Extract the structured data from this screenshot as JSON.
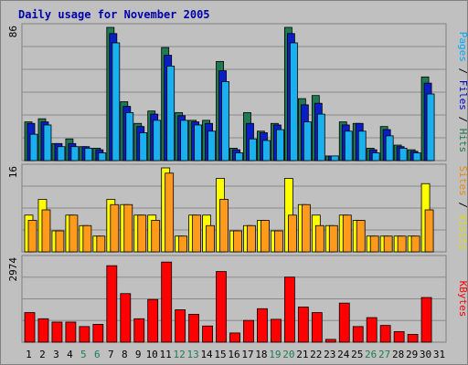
{
  "chart_data": {
    "type": "bar",
    "title": "Daily usage for November 2005",
    "categories": [
      "1",
      "2",
      "3",
      "4",
      "5",
      "6",
      "7",
      "8",
      "9",
      "10",
      "11",
      "12",
      "13",
      "14",
      "15",
      "16",
      "17",
      "18",
      "19",
      "20",
      "21",
      "22",
      "23",
      "24",
      "25",
      "26",
      "27",
      "28",
      "29",
      "30",
      "31"
    ],
    "weekend_categories": [
      "5",
      "6",
      "12",
      "13",
      "19",
      "20",
      "26",
      "27"
    ],
    "panels": [
      {
        "id": "top",
        "ymax": 86,
        "ymax_label": "86",
        "label_segments": [
          {
            "text": "Pages",
            "color": "#00aaff"
          },
          {
            "text": " / ",
            "color": "#000000"
          },
          {
            "text": "Files",
            "color": "#0000cc"
          },
          {
            "text": " / ",
            "color": "#000000"
          },
          {
            "text": "Hits",
            "color": "#1e7a4a"
          }
        ],
        "series": [
          {
            "name": "Hits",
            "color": "#1f7a52",
            "values": [
              25,
              27,
              11,
              14,
              9,
              8,
              86,
              38,
              24,
              32,
              73,
              31,
              26,
              26,
              64,
              8,
              31,
              19,
              24,
              86,
              40,
              42,
              3,
              25,
              24,
              8,
              22,
              10,
              7,
              54,
              0
            ]
          },
          {
            "name": "Files",
            "color": "#0a1ec8",
            "values": [
              24,
              25,
              11,
              11,
              9,
              7,
              82,
              35,
              22,
              30,
              68,
              29,
              25,
              24,
              58,
              7,
              24,
              18,
              23,
              82,
              36,
              37,
              3,
              23,
              24,
              7,
              20,
              9,
              6,
              50,
              0
            ]
          },
          {
            "name": "Pages",
            "color": "#1ab0f0",
            "values": [
              17,
              23,
              9,
              9,
              8,
              5,
              76,
              31,
              18,
              26,
              61,
              26,
              23,
              19,
              51,
              5,
              14,
              13,
              20,
              76,
              25,
              30,
              3,
              19,
              19,
              5,
              16,
              8,
              5,
              43,
              0
            ]
          }
        ]
      },
      {
        "id": "middle",
        "ymax": 16,
        "ymax_label": "16",
        "label_segments": [
          {
            "text": "Sites",
            "color": "#ee8800"
          },
          {
            "text": " / ",
            "color": "#000000"
          },
          {
            "text": "Visits",
            "color": "#dddd00"
          }
        ],
        "series": [
          {
            "name": "Visits",
            "color": "#ffff00",
            "values": [
              7,
              10,
              4,
              7,
              5,
              3,
              10,
              9,
              7,
              7,
              16,
              3,
              7,
              7,
              14,
              4,
              5,
              6,
              4,
              14,
              9,
              7,
              5,
              7,
              6,
              3,
              3,
              3,
              3,
              13,
              0
            ]
          },
          {
            "name": "Sites",
            "color": "#ff9a1a",
            "values": [
              6,
              8,
              4,
              7,
              5,
              3,
              9,
              9,
              7,
              6,
              15,
              3,
              7,
              5,
              10,
              4,
              5,
              6,
              4,
              7,
              9,
              5,
              5,
              7,
              6,
              3,
              3,
              3,
              3,
              8,
              0
            ]
          }
        ]
      },
      {
        "id": "bottom",
        "ymax": 2974,
        "ymax_label": "2974",
        "label_segments": [
          {
            "text": "KBytes",
            "color": "#ff0000"
          }
        ],
        "series": [
          {
            "name": "KBytes",
            "color": "#ff0000",
            "values": [
              1060,
              840,
              720,
              720,
              560,
              640,
              2740,
              1740,
              840,
              1530,
              2870,
              1160,
              1000,
              580,
              2530,
              330,
              780,
              1200,
              820,
              2330,
              1260,
              1060,
              100,
              1400,
              560,
              880,
              600,
              380,
              280,
              1600,
              0
            ]
          }
        ]
      }
    ],
    "grid": true
  }
}
